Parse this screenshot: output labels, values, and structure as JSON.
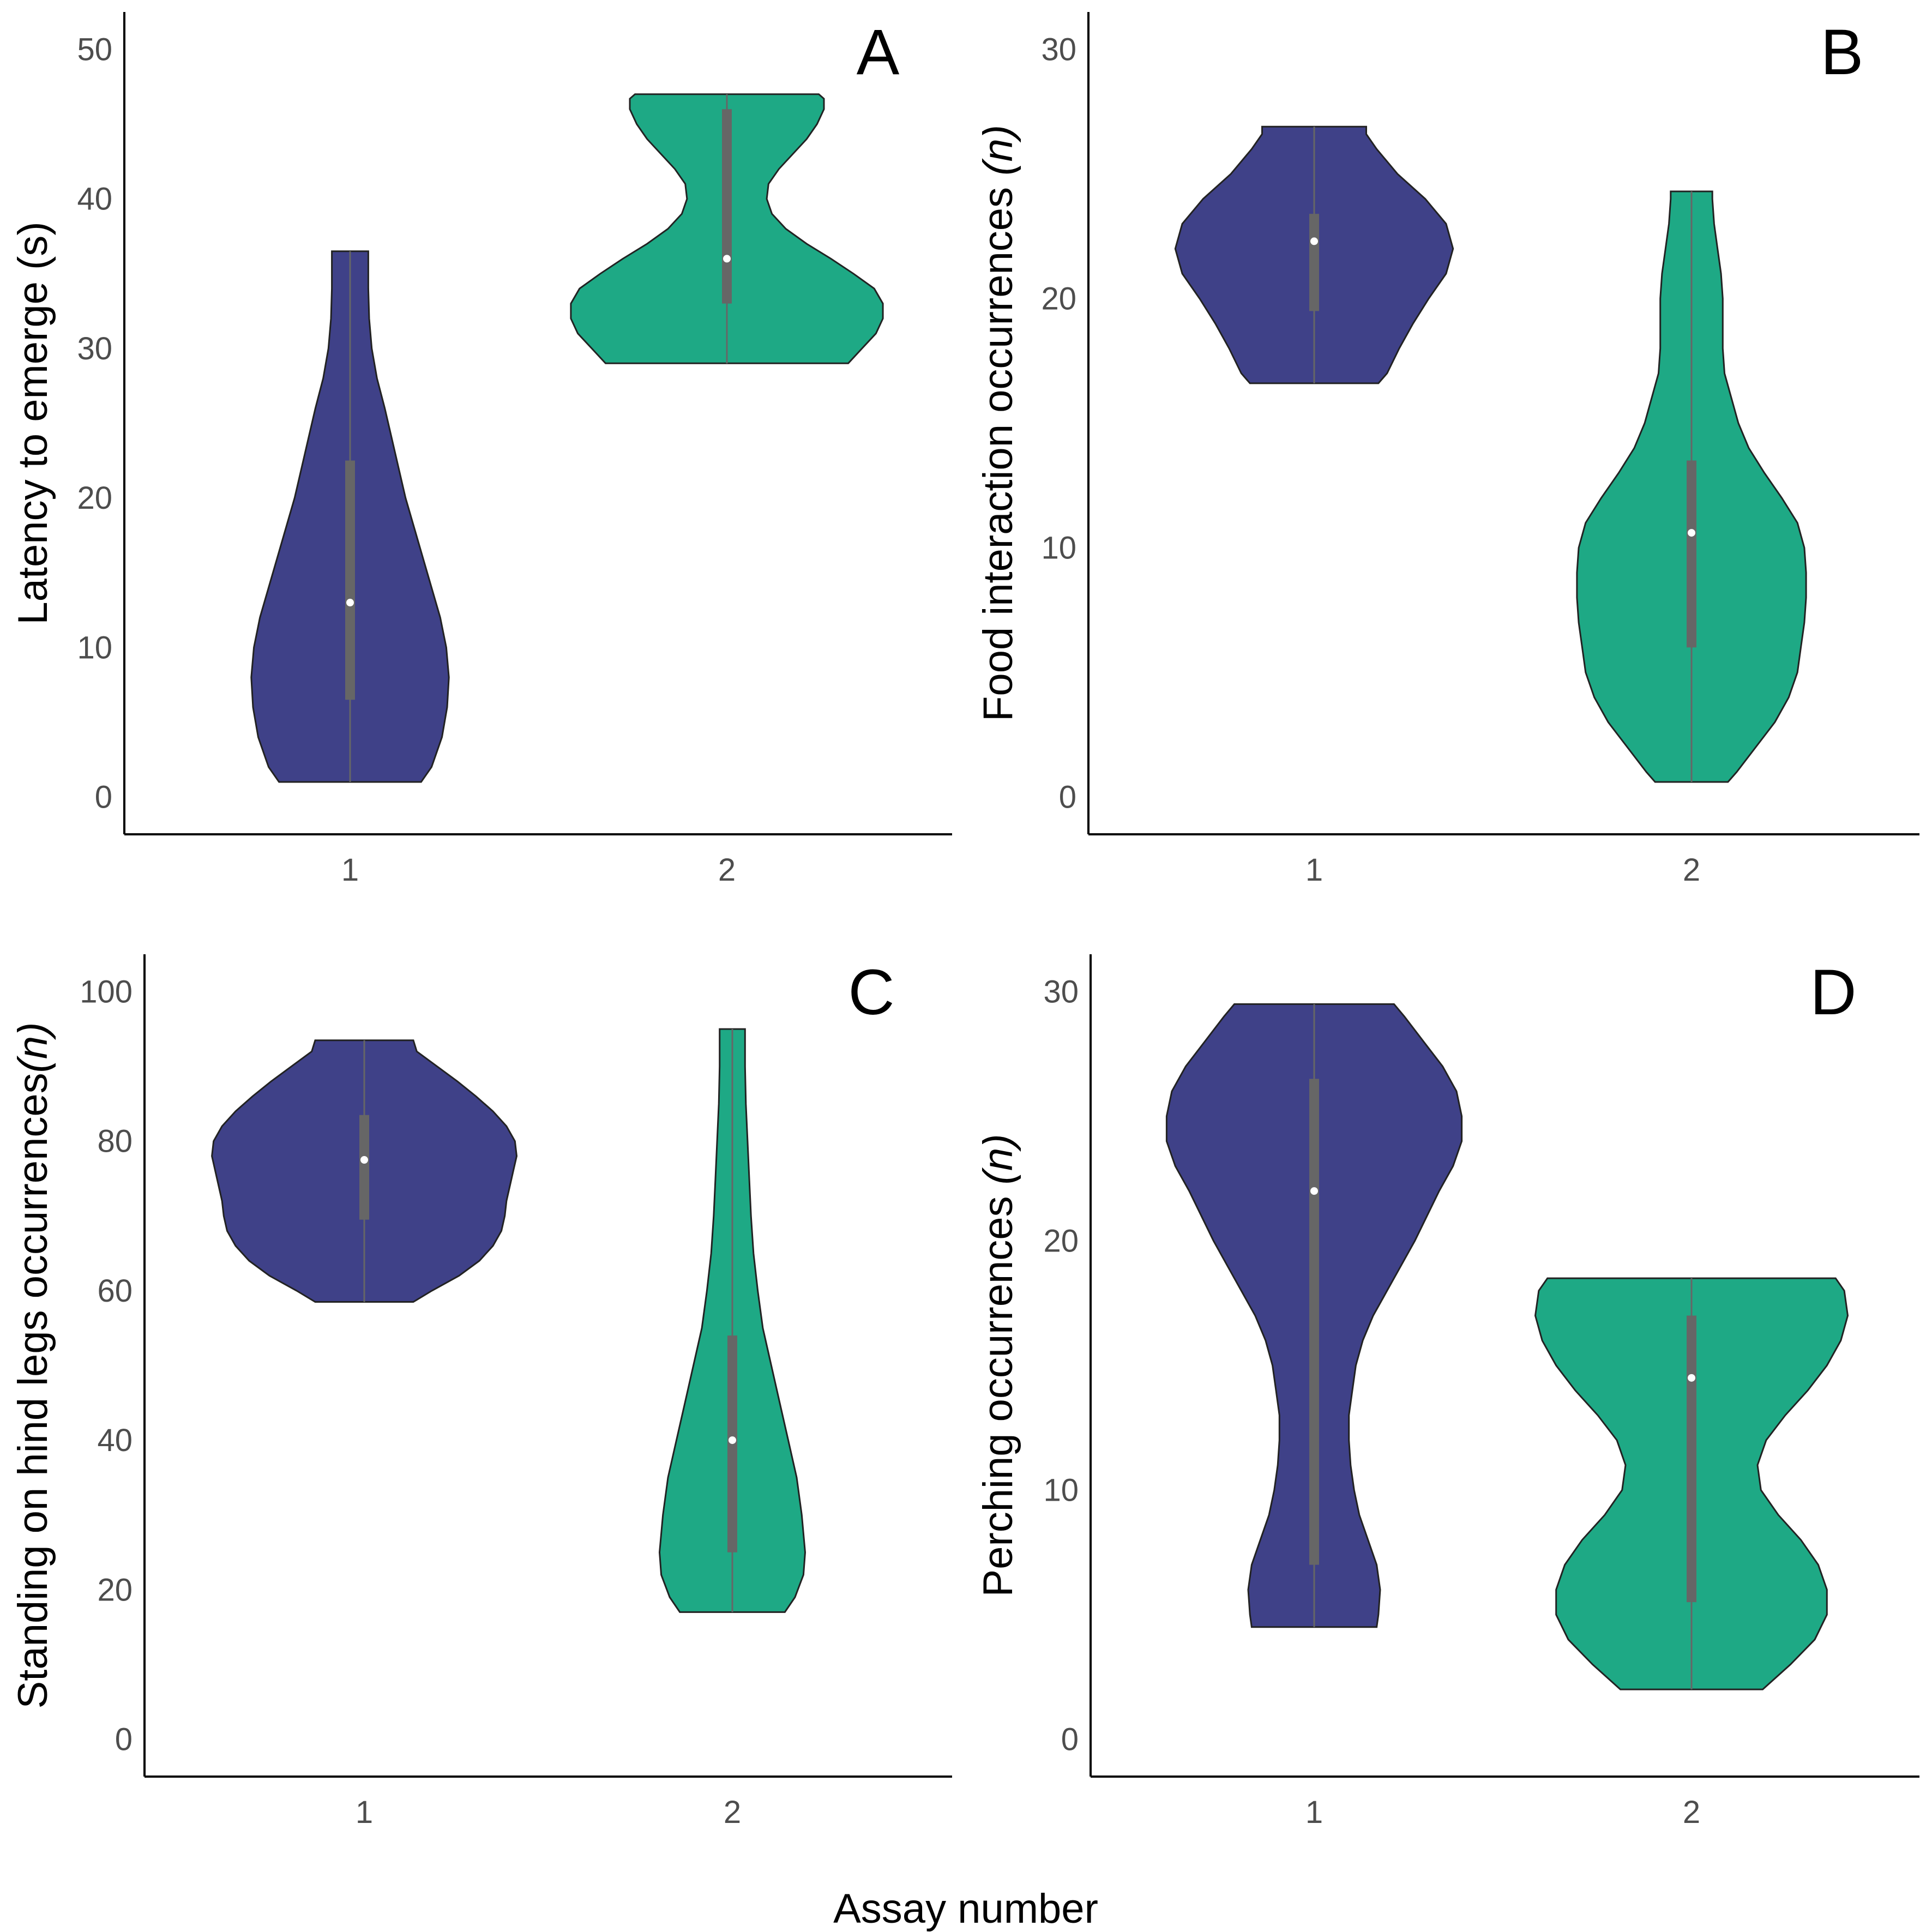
{
  "figure": {
    "xlabel": "Assay number",
    "colors": {
      "assay1": "#3f4188",
      "assay2": "#1ea985",
      "outline": "#222222",
      "box": "#666666",
      "median": "#ffffff"
    }
  },
  "chart_data": [
    {
      "type": "violin",
      "panel_label": "A",
      "ylabel_parts": [
        {
          "text": "Latency to emerge (s)",
          "italic": false
        }
      ],
      "categories": [
        "1",
        "2"
      ],
      "ylim": [
        -2.5,
        52.5
      ],
      "yticks": [
        0,
        10,
        20,
        30,
        40,
        50
      ],
      "grid": false,
      "violins": [
        {
          "x": "1",
          "min": 1,
          "max": 36.5,
          "q1": 6.5,
          "median": 13,
          "q3": 22.5,
          "profile": [
            [
              1,
              0.41
            ],
            [
              2,
              0.47
            ],
            [
              4,
              0.53
            ],
            [
              6,
              0.56
            ],
            [
              8,
              0.57
            ],
            [
              10,
              0.555
            ],
            [
              12,
              0.52
            ],
            [
              14,
              0.47
            ],
            [
              16,
              0.42
            ],
            [
              18,
              0.37
            ],
            [
              20,
              0.32
            ],
            [
              22,
              0.28
            ],
            [
              24,
              0.24
            ],
            [
              26,
              0.2
            ],
            [
              28,
              0.155
            ],
            [
              30,
              0.125
            ],
            [
              32,
              0.11
            ],
            [
              34,
              0.105
            ],
            [
              36.5,
              0.105
            ]
          ]
        },
        {
          "x": "2",
          "min": 29,
          "max": 47,
          "q1": 33,
          "median": 36,
          "q3": 46,
          "profile": [
            [
              29,
              0.7
            ],
            [
              30,
              0.78
            ],
            [
              31,
              0.86
            ],
            [
              32,
              0.9
            ],
            [
              33,
              0.9
            ],
            [
              34,
              0.85
            ],
            [
              35,
              0.73
            ],
            [
              36,
              0.6
            ],
            [
              37,
              0.46
            ],
            [
              38,
              0.34
            ],
            [
              39,
              0.26
            ],
            [
              40,
              0.23
            ],
            [
              41,
              0.24
            ],
            [
              42,
              0.3
            ],
            [
              43,
              0.38
            ],
            [
              44,
              0.46
            ],
            [
              45,
              0.52
            ],
            [
              46,
              0.56
            ],
            [
              46.7,
              0.56
            ],
            [
              47,
              0.53
            ]
          ]
        }
      ]
    },
    {
      "type": "violin",
      "panel_label": "B",
      "ylabel_parts": [
        {
          "text": "Food interaction occurrences ",
          "italic": false
        },
        {
          "text": "(n)",
          "italic": true
        }
      ],
      "categories": [
        "1",
        "2"
      ],
      "ylim": [
        -1.5,
        31.5
      ],
      "yticks": [
        0,
        10,
        20,
        30
      ],
      "grid": false,
      "violins": [
        {
          "x": "1",
          "min": 16.6,
          "max": 26.9,
          "q1": 19.5,
          "median": 22.3,
          "q3": 23.4,
          "profile": [
            [
              16.6,
              0.37
            ],
            [
              17,
              0.42
            ],
            [
              18,
              0.49
            ],
            [
              19,
              0.57
            ],
            [
              20,
              0.66
            ],
            [
              21,
              0.76
            ],
            [
              22,
              0.8
            ],
            [
              23,
              0.76
            ],
            [
              24,
              0.64
            ],
            [
              25,
              0.48
            ],
            [
              26,
              0.36
            ],
            [
              26.6,
              0.3
            ],
            [
              26.9,
              0.3
            ]
          ]
        },
        {
          "x": "2",
          "min": 0.6,
          "max": 24.3,
          "q1": 6,
          "median": 10.6,
          "q3": 13.5,
          "profile": [
            [
              0.6,
              0.21
            ],
            [
              1,
              0.26
            ],
            [
              2,
              0.37
            ],
            [
              3,
              0.48
            ],
            [
              4,
              0.56
            ],
            [
              5,
              0.61
            ],
            [
              6,
              0.63
            ],
            [
              7,
              0.65
            ],
            [
              8,
              0.66
            ],
            [
              9,
              0.66
            ],
            [
              10,
              0.65
            ],
            [
              11,
              0.61
            ],
            [
              12,
              0.52
            ],
            [
              13,
              0.42
            ],
            [
              14,
              0.33
            ],
            [
              15,
              0.27
            ],
            [
              16,
              0.23
            ],
            [
              17,
              0.19
            ],
            [
              18,
              0.18
            ],
            [
              19,
              0.18
            ],
            [
              20,
              0.18
            ],
            [
              21,
              0.17
            ],
            [
              22,
              0.15
            ],
            [
              23,
              0.13
            ],
            [
              24,
              0.12
            ],
            [
              24.3,
              0.12
            ]
          ]
        }
      ]
    },
    {
      "type": "violin",
      "panel_label": "C",
      "ylabel_parts": [
        {
          "text": "Standing on hind legs occurrences",
          "italic": false
        },
        {
          "text": "(n)",
          "italic": true
        }
      ],
      "categories": [
        "1",
        "2"
      ],
      "ylim": [
        -5,
        105
      ],
      "yticks": [
        0,
        20,
        40,
        60,
        80,
        100
      ],
      "grid": false,
      "violins": [
        {
          "x": "1",
          "min": 58.5,
          "max": 93.5,
          "q1": 69.5,
          "median": 77.5,
          "q3": 83.5,
          "profile": [
            [
              58.5,
              0.29
            ],
            [
              60,
              0.4
            ],
            [
              62,
              0.56
            ],
            [
              64,
              0.68
            ],
            [
              66,
              0.76
            ],
            [
              68,
              0.81
            ],
            [
              70,
              0.83
            ],
            [
              72,
              0.84
            ],
            [
              74,
              0.86
            ],
            [
              76,
              0.88
            ],
            [
              78,
              0.9
            ],
            [
              80,
              0.89
            ],
            [
              82,
              0.84
            ],
            [
              84,
              0.76
            ],
            [
              86,
              0.66
            ],
            [
              88,
              0.55
            ],
            [
              90,
              0.43
            ],
            [
              92,
              0.31
            ],
            [
              93.5,
              0.29
            ]
          ]
        },
        {
          "x": "2",
          "min": 17,
          "max": 95,
          "q1": 25,
          "median": 40,
          "q3": 54,
          "profile": [
            [
              17,
              0.31
            ],
            [
              19,
              0.37
            ],
            [
              22,
              0.42
            ],
            [
              25,
              0.43
            ],
            [
              30,
              0.41
            ],
            [
              35,
              0.38
            ],
            [
              40,
              0.33
            ],
            [
              45,
              0.28
            ],
            [
              50,
              0.23
            ],
            [
              55,
              0.18
            ],
            [
              60,
              0.15
            ],
            [
              65,
              0.125
            ],
            [
              70,
              0.11
            ],
            [
              75,
              0.1
            ],
            [
              80,
              0.09
            ],
            [
              85,
              0.08
            ],
            [
              90,
              0.075
            ],
            [
              95,
              0.075
            ]
          ]
        }
      ]
    },
    {
      "type": "violin",
      "panel_label": "D",
      "ylabel_parts": [
        {
          "text": "Perching occurrences  ",
          "italic": false
        },
        {
          "text": "(n)",
          "italic": true
        }
      ],
      "categories": [
        "1",
        "2"
      ],
      "ylim": [
        -1.5,
        31.5
      ],
      "yticks": [
        0,
        10,
        20,
        30
      ],
      "grid": false,
      "violins": [
        {
          "x": "1",
          "min": 4.5,
          "max": 29.5,
          "q1": 7,
          "median": 22,
          "q3": 26.5,
          "profile": [
            [
              4.5,
              0.36
            ],
            [
              5,
              0.37
            ],
            [
              6,
              0.38
            ],
            [
              7,
              0.36
            ],
            [
              8,
              0.31
            ],
            [
              9,
              0.26
            ],
            [
              10,
              0.23
            ],
            [
              11,
              0.21
            ],
            [
              12,
              0.2
            ],
            [
              13,
              0.2
            ],
            [
              14,
              0.22
            ],
            [
              15,
              0.24
            ],
            [
              16,
              0.28
            ],
            [
              17,
              0.34
            ],
            [
              18,
              0.42
            ],
            [
              19,
              0.5
            ],
            [
              20,
              0.58
            ],
            [
              21,
              0.65
            ],
            [
              22,
              0.72
            ],
            [
              23,
              0.8
            ],
            [
              24,
              0.85
            ],
            [
              25,
              0.85
            ],
            [
              26,
              0.82
            ],
            [
              27,
              0.74
            ],
            [
              28,
              0.63
            ],
            [
              29,
              0.52
            ],
            [
              29.5,
              0.46
            ]
          ]
        },
        {
          "x": "2",
          "min": 2,
          "max": 18.5,
          "q1": 5.5,
          "median": 14.5,
          "q3": 17,
          "profile": [
            [
              2,
              0.41
            ],
            [
              3,
              0.57
            ],
            [
              4,
              0.71
            ],
            [
              5,
              0.78
            ],
            [
              6,
              0.78
            ],
            [
              7,
              0.73
            ],
            [
              8,
              0.63
            ],
            [
              9,
              0.5
            ],
            [
              10,
              0.4
            ],
            [
              11,
              0.38
            ],
            [
              12,
              0.43
            ],
            [
              13,
              0.54
            ],
            [
              14,
              0.67
            ],
            [
              15,
              0.78
            ],
            [
              16,
              0.86
            ],
            [
              17,
              0.9
            ],
            [
              18,
              0.88
            ],
            [
              18.5,
              0.83
            ]
          ]
        }
      ]
    }
  ]
}
